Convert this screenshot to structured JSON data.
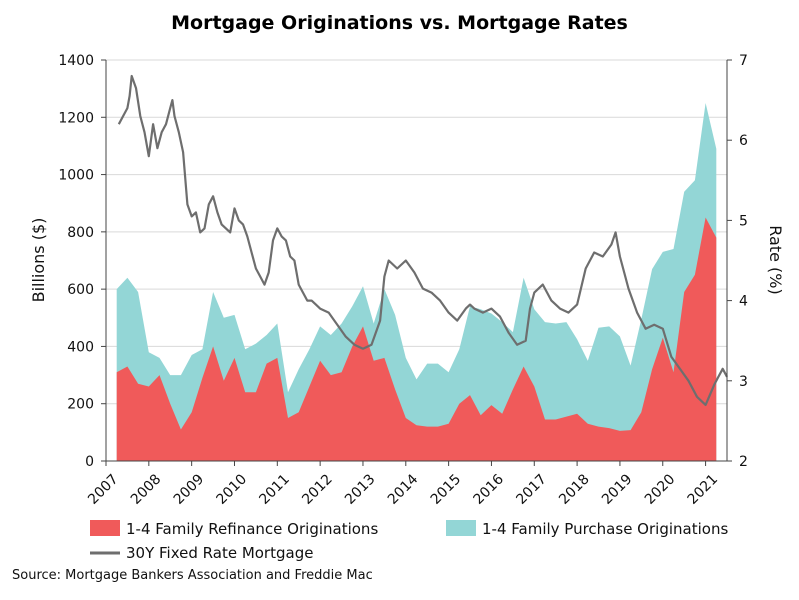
{
  "chart_title": "Mortgage Originations vs. Mortgage Rates",
  "source": "Source: Mortgage Bankers Association and Freddie Mac",
  "chart_data": {
    "type": "area",
    "title": "Mortgage Originations vs. Mortgage Rates",
    "ylabel_left": "Billions ($)",
    "ylabel_right": "Rate (%)",
    "ylim_left": [
      0,
      1400
    ],
    "yticks_left": [
      0,
      200,
      400,
      600,
      800,
      1000,
      1200,
      1400
    ],
    "ylim_right": [
      2,
      7
    ],
    "yticks_right": [
      2,
      3,
      4,
      5,
      6,
      7
    ],
    "xlim": [
      2007,
      2021.6
    ],
    "xticks": [
      2007,
      2008,
      2009,
      2010,
      2011,
      2012,
      2013,
      2014,
      2015,
      2016,
      2017,
      2018,
      2019,
      2020,
      2021
    ],
    "grid": true,
    "legend_position": "bottom",
    "colors": {
      "refinance": "#f05a5a",
      "purchase": "#93d6d6",
      "rate": "#6e6e6e"
    },
    "series": [
      {
        "name": "1-4 Family Refinance Originations",
        "kind": "area",
        "x": [
          2007.25,
          2007.5,
          2007.75,
          2008.0,
          2008.25,
          2008.5,
          2008.75,
          2009.0,
          2009.25,
          2009.5,
          2009.75,
          2010.0,
          2010.25,
          2010.5,
          2010.75,
          2011.0,
          2011.25,
          2011.5,
          2011.75,
          2012.0,
          2012.25,
          2012.5,
          2012.75,
          2013.0,
          2013.25,
          2013.5,
          2013.75,
          2014.0,
          2014.25,
          2014.5,
          2014.75,
          2015.0,
          2015.25,
          2015.5,
          2015.75,
          2016.0,
          2016.25,
          2016.5,
          2016.75,
          2017.0,
          2017.25,
          2017.5,
          2017.75,
          2018.0,
          2018.25,
          2018.5,
          2018.75,
          2019.0,
          2019.25,
          2019.5,
          2019.75,
          2020.0,
          2020.25,
          2020.5,
          2020.75,
          2021.0,
          2021.25
        ],
        "values": [
          310,
          330,
          270,
          260,
          300,
          200,
          110,
          170,
          290,
          400,
          280,
          360,
          240,
          240,
          340,
          360,
          150,
          170,
          260,
          350,
          300,
          310,
          400,
          470,
          350,
          360,
          250,
          150,
          125,
          120,
          120,
          130,
          200,
          230,
          160,
          195,
          165,
          250,
          330,
          260,
          145,
          145,
          155,
          165,
          130,
          120,
          115,
          105,
          108,
          170,
          320,
          430,
          310,
          590,
          650,
          850,
          780
        ]
      },
      {
        "name": "1-4 Family Purchase Originations",
        "kind": "stacked-area",
        "x": [
          2007.25,
          2007.5,
          2007.75,
          2008.0,
          2008.25,
          2008.5,
          2008.75,
          2009.0,
          2009.25,
          2009.5,
          2009.75,
          2010.0,
          2010.25,
          2010.5,
          2010.75,
          2011.0,
          2011.25,
          2011.5,
          2011.75,
          2012.0,
          2012.25,
          2012.5,
          2012.75,
          2013.0,
          2013.25,
          2013.5,
          2013.75,
          2014.0,
          2014.25,
          2014.5,
          2014.75,
          2015.0,
          2015.25,
          2015.5,
          2015.75,
          2016.0,
          2016.25,
          2016.5,
          2016.75,
          2017.0,
          2017.25,
          2017.5,
          2017.75,
          2018.0,
          2018.25,
          2018.5,
          2018.75,
          2019.0,
          2019.25,
          2019.5,
          2019.75,
          2020.0,
          2020.25,
          2020.5,
          2020.75,
          2021.0,
          2021.25
        ],
        "values": [
          290,
          310,
          320,
          120,
          60,
          100,
          190,
          200,
          100,
          190,
          220,
          150,
          150,
          170,
          100,
          120,
          90,
          150,
          130,
          120,
          140,
          170,
          140,
          140,
          130,
          240,
          260,
          210,
          160,
          220,
          220,
          180,
          190,
          310,
          370,
          320,
          320,
          200,
          310,
          270,
          340,
          335,
          330,
          260,
          220,
          345,
          355,
          330,
          225,
          325,
          350,
          300,
          430,
          350,
          330,
          400,
          310
        ]
      },
      {
        "name": "30Y Fixed Rate Mortgage",
        "kind": "line",
        "axis": "right",
        "x": [
          2007.3,
          2007.4,
          2007.5,
          2007.55,
          2007.6,
          2007.7,
          2007.8,
          2007.9,
          2008.0,
          2008.1,
          2008.2,
          2008.3,
          2008.4,
          2008.5,
          2008.55,
          2008.6,
          2008.7,
          2008.8,
          2008.9,
          2009.0,
          2009.1,
          2009.2,
          2009.3,
          2009.4,
          2009.5,
          2009.6,
          2009.7,
          2009.8,
          2009.9,
          2010.0,
          2010.1,
          2010.2,
          2010.3,
          2010.4,
          2010.5,
          2010.6,
          2010.7,
          2010.8,
          2010.9,
          2011.0,
          2011.1,
          2011.2,
          2011.3,
          2011.4,
          2011.5,
          2011.6,
          2011.7,
          2011.8,
          2011.9,
          2012.0,
          2012.2,
          2012.4,
          2012.6,
          2012.8,
          2013.0,
          2013.2,
          2013.4,
          2013.5,
          2013.6,
          2013.8,
          2014.0,
          2014.2,
          2014.4,
          2014.6,
          2014.8,
          2015.0,
          2015.2,
          2015.4,
          2015.5,
          2015.6,
          2015.8,
          2016.0,
          2016.2,
          2016.4,
          2016.6,
          2016.8,
          2016.9,
          2017.0,
          2017.2,
          2017.4,
          2017.6,
          2017.8,
          2018.0,
          2018.2,
          2018.4,
          2018.6,
          2018.8,
          2018.9,
          2019.0,
          2019.1,
          2019.2,
          2019.4,
          2019.6,
          2019.8,
          2020.0,
          2020.2,
          2020.4,
          2020.6,
          2020.8,
          2021.0,
          2021.2,
          2021.3,
          2021.4,
          2021.5
        ],
        "values": [
          6.2,
          6.3,
          6.4,
          6.55,
          6.8,
          6.65,
          6.3,
          6.1,
          5.8,
          6.2,
          5.9,
          6.1,
          6.2,
          6.4,
          6.5,
          6.3,
          6.1,
          5.85,
          5.2,
          5.05,
          5.1,
          4.85,
          4.9,
          5.2,
          5.3,
          5.1,
          4.95,
          4.9,
          4.85,
          5.15,
          5.0,
          4.95,
          4.8,
          4.6,
          4.4,
          4.3,
          4.2,
          4.35,
          4.75,
          4.9,
          4.8,
          4.75,
          4.55,
          4.5,
          4.2,
          4.1,
          4.0,
          4.0,
          3.95,
          3.9,
          3.85,
          3.7,
          3.55,
          3.45,
          3.4,
          3.45,
          3.75,
          4.3,
          4.5,
          4.4,
          4.5,
          4.35,
          4.15,
          4.1,
          4.0,
          3.85,
          3.75,
          3.9,
          3.95,
          3.9,
          3.85,
          3.9,
          3.8,
          3.6,
          3.45,
          3.5,
          3.9,
          4.1,
          4.2,
          4.0,
          3.9,
          3.85,
          3.95,
          4.4,
          4.6,
          4.55,
          4.7,
          4.85,
          4.55,
          4.35,
          4.15,
          3.85,
          3.65,
          3.7,
          3.65,
          3.3,
          3.15,
          3.0,
          2.8,
          2.7,
          2.95,
          3.05,
          3.15,
          3.05
        ]
      }
    ]
  }
}
